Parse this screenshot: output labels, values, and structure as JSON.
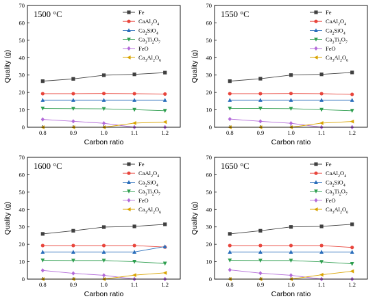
{
  "chart_data": [
    {
      "type": "line",
      "annotation": "1500 °C",
      "xlabel": "Carbon ratio",
      "ylabel": "Quality (g)",
      "x": [
        0.8,
        0.9,
        1.0,
        1.1,
        1.2
      ],
      "xlim": [
        0.75,
        1.25
      ],
      "ylim": [
        0,
        70
      ],
      "xticks": [
        "0.8",
        "0.9",
        "1.0",
        "1.1",
        "1.2"
      ],
      "yticks": [
        "0",
        "10",
        "20",
        "30",
        "40",
        "50",
        "60",
        "70"
      ],
      "legend_position": "top-right",
      "series": [
        {
          "name": "Fe",
          "name_html": "Fe",
          "color": "#404040",
          "marker": "square",
          "values": [
            26.5,
            27.8,
            29.9,
            30.4,
            31.4
          ]
        },
        {
          "name": "CaAl2O4",
          "name_html": "CaAl<tspan baseline-shift='sub' font-size='6'>2</tspan>O<tspan baseline-shift='sub' font-size='6'>4</tspan>",
          "color": "#e8453c",
          "marker": "circle",
          "values": [
            19.3,
            19.3,
            19.4,
            19.3,
            19.1
          ]
        },
        {
          "name": "Ca2SiO4",
          "name_html": "Ca<tspan baseline-shift='sub' font-size='6'>2</tspan>SiO<tspan baseline-shift='sub' font-size='6'>4</tspan>",
          "color": "#2a6ebb",
          "marker": "triangle-up",
          "values": [
            15.6,
            15.6,
            15.6,
            15.6,
            15.6
          ]
        },
        {
          "name": "Ca3Ti2O7",
          "name_html": "Ca<tspan baseline-shift='sub' font-size='6'>3</tspan>Ti<tspan baseline-shift='sub' font-size='6'>2</tspan>O<tspan baseline-shift='sub' font-size='6'>7</tspan>",
          "color": "#2e9e4f",
          "marker": "triangle-down",
          "values": [
            10.8,
            10.7,
            10.6,
            10.1,
            9.5
          ]
        },
        {
          "name": "FeO",
          "name_html": "FeO",
          "color": "#b36ad9",
          "marker": "diamond",
          "values": [
            4.5,
            3.4,
            2.3,
            0.0,
            0.0
          ]
        },
        {
          "name": "Ca3Al2O6",
          "name_html": "Ca<tspan baseline-shift='sub' font-size='6'>3</tspan>Al<tspan baseline-shift='sub' font-size='6'>2</tspan>O<tspan baseline-shift='sub' font-size='6'>6</tspan>",
          "color": "#d9a400",
          "marker": "triangle-left",
          "values": [
            0.0,
            0.0,
            0.0,
            2.4,
            3.0
          ]
        }
      ]
    },
    {
      "type": "line",
      "annotation": "1550 °C",
      "xlabel": "Carbon ratio",
      "ylabel": "Quality (g)",
      "x": [
        0.8,
        0.9,
        1.0,
        1.1,
        1.2
      ],
      "xlim": [
        0.75,
        1.25
      ],
      "ylim": [
        0,
        70
      ],
      "xticks": [
        "0.8",
        "0.9",
        "1.0",
        "1.1",
        "1.2"
      ],
      "yticks": [
        "0",
        "10",
        "20",
        "30",
        "40",
        "50",
        "60",
        "70"
      ],
      "legend_position": "top-right",
      "series": [
        {
          "name": "Fe",
          "name_html": "Fe",
          "color": "#404040",
          "marker": "square",
          "values": [
            26.5,
            27.9,
            30.0,
            30.4,
            31.5
          ]
        },
        {
          "name": "CaAl2O4",
          "name_html": "CaAl<tspan baseline-shift='sub' font-size='6'>2</tspan>O<tspan baseline-shift='sub' font-size='6'>4</tspan>",
          "color": "#e8453c",
          "marker": "circle",
          "values": [
            19.3,
            19.3,
            19.4,
            19.3,
            18.9
          ]
        },
        {
          "name": "Ca2SiO4",
          "name_html": "Ca<tspan baseline-shift='sub' font-size='6'>2</tspan>SiO<tspan baseline-shift='sub' font-size='6'>4</tspan>",
          "color": "#2a6ebb",
          "marker": "triangle-up",
          "values": [
            15.6,
            15.6,
            15.6,
            15.6,
            15.6
          ]
        },
        {
          "name": "Ca3Ti2O7",
          "name_html": "Ca<tspan baseline-shift='sub' font-size='6'>3</tspan>Ti<tspan baseline-shift='sub' font-size='6'>2</tspan>O<tspan baseline-shift='sub' font-size='6'>7</tspan>",
          "color": "#2e9e4f",
          "marker": "triangle-down",
          "values": [
            10.8,
            10.8,
            10.7,
            10.1,
            9.5
          ]
        },
        {
          "name": "FeO",
          "name_html": "FeO",
          "color": "#b36ad9",
          "marker": "diamond",
          "values": [
            4.7,
            3.4,
            2.3,
            0.0,
            0.0
          ]
        },
        {
          "name": "Ca3Al2O6",
          "name_html": "Ca<tspan baseline-shift='sub' font-size='6'>3</tspan>Al<tspan baseline-shift='sub' font-size='6'>2</tspan>O<tspan baseline-shift='sub' font-size='6'>6</tspan>",
          "color": "#d9a400",
          "marker": "triangle-left",
          "values": [
            0.0,
            0.0,
            0.0,
            2.4,
            3.3
          ]
        }
      ]
    },
    {
      "type": "line",
      "annotation": "1600 °C",
      "xlabel": "Carbon ratio",
      "ylabel": "Quality (g)",
      "x": [
        0.8,
        0.9,
        1.0,
        1.1,
        1.2
      ],
      "xlim": [
        0.75,
        1.25
      ],
      "ylim": [
        0,
        70
      ],
      "xticks": [
        "0.8",
        "0.9",
        "1.0",
        "1.1",
        "1.2"
      ],
      "yticks": [
        "0",
        "10",
        "20",
        "30",
        "40",
        "50",
        "60",
        "70"
      ],
      "legend_position": "top-right",
      "series": [
        {
          "name": "Fe",
          "name_html": "Fe",
          "color": "#404040",
          "marker": "square",
          "values": [
            26.0,
            27.8,
            29.9,
            30.3,
            31.5
          ]
        },
        {
          "name": "CaAl2O4",
          "name_html": "CaAl<tspan baseline-shift='sub' font-size='6'>2</tspan>O<tspan baseline-shift='sub' font-size='6'>4</tspan>",
          "color": "#e8453c",
          "marker": "circle",
          "values": [
            19.3,
            19.3,
            19.3,
            19.3,
            18.4
          ]
        },
        {
          "name": "Ca2SiO4",
          "name_html": "Ca<tspan baseline-shift='sub' font-size='6'>2</tspan>SiO<tspan baseline-shift='sub' font-size='6'>4</tspan>",
          "color": "#2a6ebb",
          "marker": "triangle-up",
          "values": [
            15.6,
            15.6,
            15.6,
            15.6,
            18.7
          ]
        },
        {
          "name": "Ca3Ti2O7",
          "name_html": "Ca<tspan baseline-shift='sub' font-size='6'>3</tspan>Ti<tspan baseline-shift='sub' font-size='6'>2</tspan>O<tspan baseline-shift='sub' font-size='6'>7</tspan>",
          "color": "#2e9e4f",
          "marker": "triangle-down",
          "values": [
            10.8,
            10.7,
            10.7,
            10.0,
            9.0
          ]
        },
        {
          "name": "FeO",
          "name_html": "FeO",
          "color": "#b36ad9",
          "marker": "diamond",
          "values": [
            5.0,
            3.3,
            2.2,
            0.0,
            0.0
          ]
        },
        {
          "name": "Ca3Al2O6",
          "name_html": "Ca<tspan baseline-shift='sub' font-size='6'>3</tspan>Al<tspan baseline-shift='sub' font-size='6'>2</tspan>O<tspan baseline-shift='sub' font-size='6'>6</tspan>",
          "color": "#d9a400",
          "marker": "triangle-left",
          "values": [
            0.0,
            0.0,
            0.0,
            2.3,
            3.6
          ]
        }
      ]
    },
    {
      "type": "line",
      "annotation": "1650 °C",
      "xlabel": "Carbon ratio",
      "ylabel": "Quality (g)",
      "x": [
        0.8,
        0.9,
        1.0,
        1.1,
        1.2
      ],
      "xlim": [
        0.75,
        1.25
      ],
      "ylim": [
        0,
        70
      ],
      "xticks": [
        "0.8",
        "0.9",
        "1.0",
        "1.1",
        "1.2"
      ],
      "yticks": [
        "0",
        "10",
        "20",
        "30",
        "40",
        "50",
        "60",
        "70"
      ],
      "legend_position": "top-right",
      "series": [
        {
          "name": "Fe",
          "name_html": "Fe",
          "color": "#404040",
          "marker": "square",
          "values": [
            26.0,
            27.8,
            30.0,
            30.3,
            31.5
          ]
        },
        {
          "name": "CaAl2O4",
          "name_html": "CaAl<tspan baseline-shift='sub' font-size='6'>2</tspan>O<tspan baseline-shift='sub' font-size='6'>4</tspan>",
          "color": "#e8453c",
          "marker": "circle",
          "values": [
            19.3,
            19.3,
            19.3,
            19.3,
            18.2
          ]
        },
        {
          "name": "Ca2SiO4",
          "name_html": "Ca<tspan baseline-shift='sub' font-size='6'>2</tspan>SiO<tspan baseline-shift='sub' font-size='6'>4</tspan>",
          "color": "#2a6ebb",
          "marker": "triangle-up",
          "values": [
            15.6,
            15.6,
            15.6,
            15.6,
            15.6
          ]
        },
        {
          "name": "Ca3Ti2O7",
          "name_html": "Ca<tspan baseline-shift='sub' font-size='6'>3</tspan>Ti<tspan baseline-shift='sub' font-size='6'>2</tspan>O<tspan baseline-shift='sub' font-size='6'>7</tspan>",
          "color": "#2e9e4f",
          "marker": "triangle-down",
          "values": [
            10.8,
            10.7,
            10.7,
            9.9,
            8.8
          ]
        },
        {
          "name": "FeO",
          "name_html": "FeO",
          "color": "#b36ad9",
          "marker": "diamond",
          "values": [
            5.3,
            3.4,
            2.2,
            0.0,
            0.0
          ]
        },
        {
          "name": "Ca3Al2O6",
          "name_html": "Ca<tspan baseline-shift='sub' font-size='6'>3</tspan>Al<tspan baseline-shift='sub' font-size='6'>2</tspan>O<tspan baseline-shift='sub' font-size='6'>6</tspan>",
          "color": "#d9a400",
          "marker": "triangle-left",
          "values": [
            0.0,
            0.0,
            0.0,
            2.5,
            4.5
          ]
        }
      ]
    }
  ]
}
